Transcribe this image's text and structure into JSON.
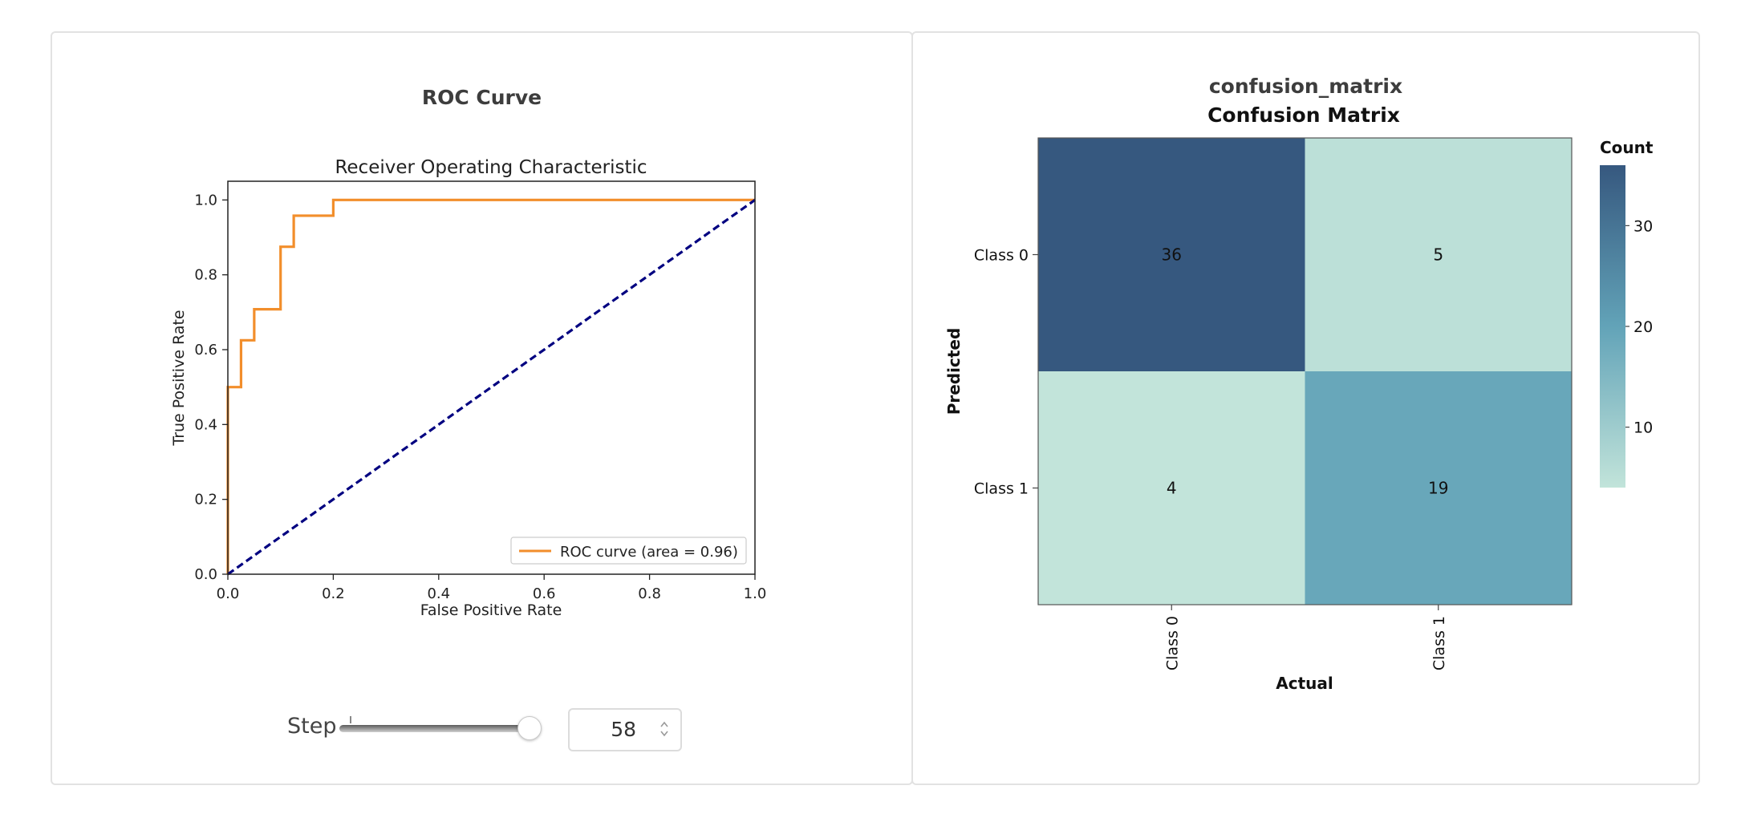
{
  "roc_panel": {
    "title": "ROC Curve",
    "step_label": "Step",
    "step_value": "58",
    "slider_fraction": 0.98
  },
  "cm_panel": {
    "title": "confusion_matrix"
  },
  "chart_data": [
    {
      "type": "line",
      "title": "Receiver Operating Characteristic",
      "xlabel": "False Positive Rate",
      "ylabel": "True Positive Rate",
      "xlim": [
        0.0,
        1.0
      ],
      "ylim": [
        0.0,
        1.05
      ],
      "x_ticks": [
        "0.0",
        "0.2",
        "0.4",
        "0.6",
        "0.8",
        "1.0"
      ],
      "y_ticks": [
        "0.0",
        "0.2",
        "0.4",
        "0.6",
        "0.8",
        "1.0"
      ],
      "legend_position": "lower-right",
      "series": [
        {
          "name": "ROC curve (area = 0.96)",
          "color": "#f28e2b",
          "style": "solid",
          "x": [
            0.0,
            0.0,
            0.025,
            0.025,
            0.05,
            0.05,
            0.1,
            0.1,
            0.125,
            0.125,
            0.2,
            0.2,
            1.0
          ],
          "y": [
            0.0,
            0.5,
            0.5,
            0.625,
            0.625,
            0.708,
            0.708,
            0.875,
            0.875,
            0.958,
            0.958,
            1.0,
            1.0
          ]
        },
        {
          "color": "#000080",
          "style": "dashed",
          "x": [
            0.0,
            1.0
          ],
          "y": [
            0.0,
            1.0
          ]
        }
      ]
    },
    {
      "type": "heatmap",
      "title": "Confusion Matrix",
      "xlabel": "Actual",
      "ylabel": "Predicted",
      "x_categories": [
        "Class 0",
        "Class 1"
      ],
      "y_categories": [
        "Class 0",
        "Class 1"
      ],
      "values": [
        [
          36,
          5
        ],
        [
          4,
          19
        ]
      ],
      "colorbar": {
        "title": "Count",
        "ticks": [
          "10",
          "20",
          "30"
        ],
        "range": [
          4,
          36
        ],
        "colors": [
          "#c2e4da",
          "#62a3b8",
          "#36587f"
        ]
      }
    }
  ]
}
